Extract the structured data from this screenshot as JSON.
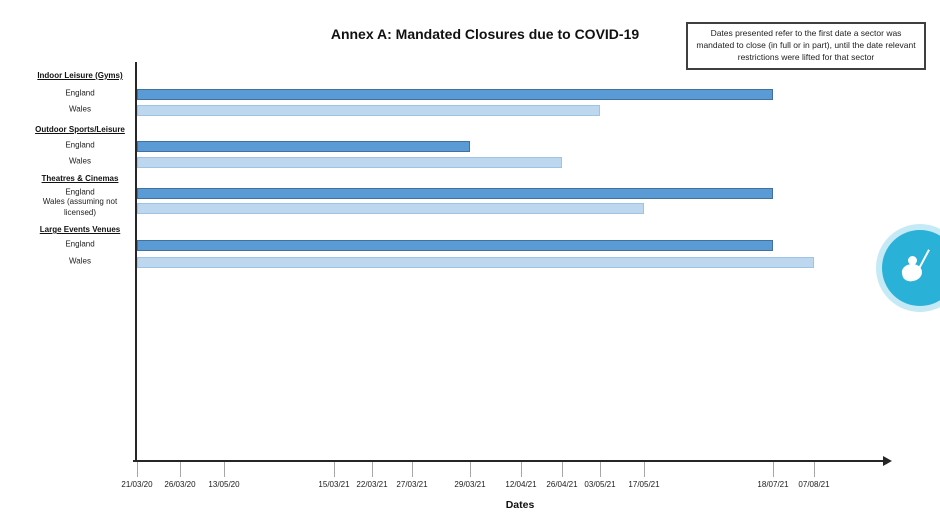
{
  "title": "Annex A: Mandated Closures due to COVID-19",
  "note": "Dates presented refer to the first date a sector was mandated to close (in full or in part), until the date relevant restrictions were lifted for that sector",
  "xlabel": "Dates",
  "widget": {
    "icon": "accessibility-person-icon",
    "color": "#2ab1d8"
  },
  "chart_data": {
    "type": "bar",
    "variant": "horizontal-timeline",
    "title": "Annex A: Mandated Closures due to COVID-19",
    "xlabel": "Dates",
    "x_axis_nonlinear": true,
    "grid": false,
    "legend": "none",
    "x_ticks": [
      "21/03/20",
      "26/03/20",
      "13/05/20",
      "15/03/21",
      "22/03/21",
      "27/03/21",
      "29/03/21",
      "12/04/21",
      "26/04/21",
      "03/05/21",
      "17/05/21",
      "18/07/21",
      "07/08/21"
    ],
    "series_colors": {
      "england_fill": "#5B9BD5",
      "england_border": "#41719C",
      "wales_fill": "#BDD7EE",
      "wales_border": "#9DC3E6"
    },
    "groups": [
      {
        "category": "Indoor Leisure (Gyms)",
        "bars": [
          {
            "label": "England",
            "region": "england",
            "start": "21/03/20",
            "end": "18/07/21"
          },
          {
            "label": "Wales",
            "region": "wales",
            "start": "21/03/20",
            "end": "03/05/21"
          }
        ]
      },
      {
        "category": "Outdoor Sports/Leisure",
        "bars": [
          {
            "label": "England",
            "region": "england",
            "start": "21/03/20",
            "end": "29/03/21"
          },
          {
            "label": "Wales",
            "region": "wales",
            "start": "21/03/20",
            "end": "26/04/21"
          }
        ]
      },
      {
        "category": "Theatres & Cinemas",
        "bars": [
          {
            "label": "England",
            "region": "england",
            "start": "21/03/20",
            "end": "18/07/21"
          },
          {
            "label": "Wales (assuming not licensed)",
            "region": "wales",
            "start": "21/03/20",
            "end": "17/05/21"
          }
        ]
      },
      {
        "category": "Large Events Venues",
        "bars": [
          {
            "label": "England",
            "region": "england",
            "start": "21/03/20",
            "end": "18/07/21"
          },
          {
            "label": "Wales",
            "region": "wales",
            "start": "21/03/20",
            "end": "07/08/21"
          }
        ]
      }
    ]
  }
}
